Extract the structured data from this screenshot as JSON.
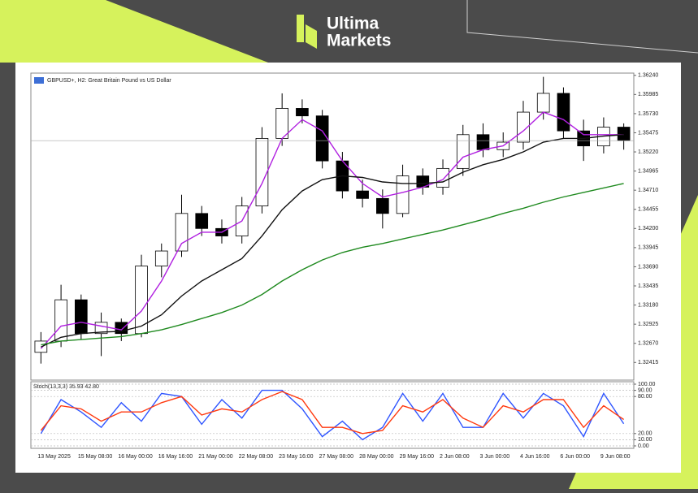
{
  "header": {
    "brand": [
      "Ultima",
      "Markets"
    ]
  },
  "chart_data": [
    {
      "type": "candlestick",
      "title": "GBPUSD+, H2:  Great Britain Pound vs US Dollar",
      "categories": [
        "13 May 2025",
        null,
        "15 May 08:00",
        null,
        "16 May 00:00",
        null,
        "16 May 16:00",
        null,
        "21 May 00:00",
        null,
        "22 May 08:00",
        null,
        "23 May 16:00",
        null,
        "27 May 08:00",
        null,
        "28 May 00:00",
        null,
        "29 May 16:00",
        null,
        "2 Jun 08:00",
        null,
        "3 Jun 00:00",
        null,
        "4 Jun 16:00",
        null,
        "6 Jun 00:00",
        null,
        "9 Jun 08:00",
        null
      ],
      "open": [
        1.3255,
        1.327,
        1.3325,
        1.328,
        1.3295,
        1.328,
        1.337,
        1.339,
        1.344,
        1.342,
        1.341,
        1.345,
        1.354,
        1.358,
        1.357,
        1.351,
        1.347,
        1.346,
        1.344,
        1.349,
        1.3475,
        1.35,
        1.3545,
        1.3525,
        1.3535,
        1.3575,
        1.36,
        1.355,
        1.353,
        1.3555
      ],
      "high": [
        1.3282,
        1.3345,
        1.3332,
        1.3308,
        1.33,
        1.3385,
        1.34,
        1.3465,
        1.345,
        1.3432,
        1.3462,
        1.3555,
        1.36,
        1.3592,
        1.3578,
        1.3522,
        1.3485,
        1.3472,
        1.3505,
        1.35,
        1.3512,
        1.3558,
        1.356,
        1.3548,
        1.359,
        1.3622,
        1.3608,
        1.3565,
        1.3568,
        1.356
      ],
      "low": [
        1.324,
        1.3262,
        1.3272,
        1.325,
        1.327,
        1.3275,
        1.3355,
        1.3382,
        1.341,
        1.34,
        1.34,
        1.344,
        1.353,
        1.356,
        1.35,
        1.346,
        1.3448,
        1.342,
        1.3435,
        1.3465,
        1.3465,
        1.349,
        1.3515,
        1.3515,
        1.3525,
        1.3565,
        1.354,
        1.351,
        1.352,
        1.3525
      ],
      "close": [
        1.327,
        1.3325,
        1.328,
        1.3295,
        1.328,
        1.337,
        1.339,
        1.344,
        1.342,
        1.341,
        1.345,
        1.354,
        1.358,
        1.357,
        1.351,
        1.347,
        1.346,
        1.344,
        1.349,
        1.3475,
        1.35,
        1.3545,
        1.3525,
        1.3535,
        1.3575,
        1.36,
        1.355,
        1.353,
        1.3555,
        1.3537
      ],
      "up_color": "#ffffff",
      "down_color": "#000000",
      "series": [
        {
          "color": "#b01fe0",
          "values": [
            1.326,
            1.329,
            1.3295,
            1.329,
            1.3285,
            1.331,
            1.335,
            1.34,
            1.3415,
            1.3415,
            1.343,
            1.348,
            1.354,
            1.3565,
            1.355,
            1.351,
            1.348,
            1.3462,
            1.3468,
            1.3475,
            1.3485,
            1.3515,
            1.3525,
            1.353,
            1.355,
            1.3575,
            1.3565,
            1.3545,
            1.3545,
            1.3545
          ]
        },
        {
          "color": "#111111",
          "values": [
            1.3262,
            1.3275,
            1.328,
            1.3282,
            1.3283,
            1.329,
            1.3305,
            1.333,
            1.335,
            1.3365,
            1.338,
            1.341,
            1.3445,
            1.347,
            1.3485,
            1.349,
            1.3488,
            1.3482,
            1.348,
            1.348,
            1.3482,
            1.3495,
            1.3505,
            1.3512,
            1.3522,
            1.3535,
            1.354,
            1.354,
            1.3543,
            1.3545
          ]
        },
        {
          "color": "#1f8a1f",
          "values": [
            1.3265,
            1.327,
            1.3272,
            1.3274,
            1.3276,
            1.328,
            1.3285,
            1.3292,
            1.33,
            1.3308,
            1.3318,
            1.3332,
            1.335,
            1.3365,
            1.3378,
            1.3388,
            1.3395,
            1.34,
            1.3406,
            1.3412,
            1.3418,
            1.3425,
            1.3432,
            1.344,
            1.3447,
            1.3455,
            1.3462,
            1.3468,
            1.3474,
            1.348
          ]
        }
      ],
      "last_price": 1.3537,
      "ylim": [
        1.3218,
        1.3627
      ],
      "yticks": [
        1.32415,
        {
          "value": 1.3267,
          "label": "1.32670"
        },
        1.32925,
        {
          "value": 1.3318,
          "label": "1.33180"
        },
        1.33435,
        {
          "value": 1.3369,
          "label": "1.33690"
        },
        1.33945,
        {
          "value": 1.342,
          "label": "1.34200"
        },
        1.34455,
        {
          "value": 1.3471,
          "label": "1.34710"
        },
        1.34965,
        {
          "value": 1.3522,
          "label": "1.35220"
        },
        1.35475,
        {
          "value": 1.3573,
          "label": "1.35730"
        },
        1.35985,
        {
          "value": 1.3624,
          "label": "1.36240"
        }
      ]
    },
    {
      "type": "line",
      "title": "Stoch(13,3,3) 35.93 42.80",
      "series": [
        {
          "color": "#2f55ff",
          "values": [
            20,
            75,
            55,
            30,
            70,
            40,
            85,
            80,
            35,
            75,
            45,
            90,
            90,
            60,
            15,
            40,
            10,
            30,
            85,
            40,
            85,
            30,
            30,
            85,
            45,
            85,
            65,
            15,
            85,
            35.93
          ]
        },
        {
          "color": "#ff3a10",
          "values": [
            25,
            65,
            60,
            40,
            55,
            55,
            70,
            80,
            50,
            60,
            55,
            75,
            88,
            75,
            30,
            30,
            20,
            25,
            65,
            55,
            75,
            45,
            30,
            65,
            55,
            75,
            75,
            30,
            65,
            42.8
          ]
        }
      ],
      "ylim": [
        0,
        100
      ],
      "yticks": [
        {
          "value": 100,
          "label": "100.00"
        },
        {
          "value": 90,
          "label": "90.00"
        },
        {
          "value": 80,
          "label": "80.00"
        },
        {
          "value": 20,
          "label": "20.00"
        },
        {
          "value": 10,
          "label": "10.00"
        },
        {
          "value": 0,
          "label": "0.00"
        }
      ],
      "grid": true
    }
  ]
}
